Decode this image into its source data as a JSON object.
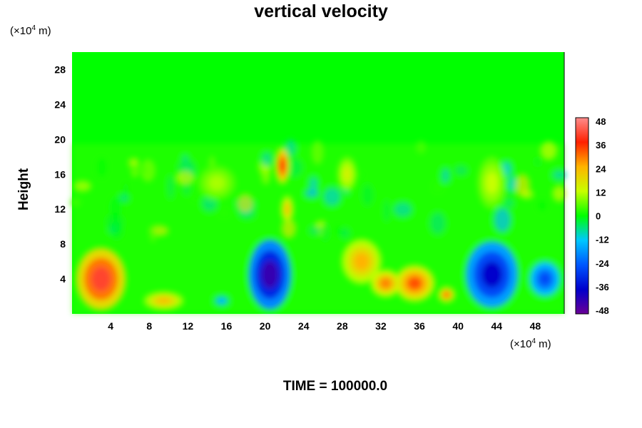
{
  "title": "vertical velocity",
  "time_label": "TIME = 100000.0",
  "y_unit": {
    "prefix": "(×10",
    "exp": "4",
    "suffix": " m)"
  },
  "x_unit": {
    "prefix": "(×10",
    "exp": "4",
    "suffix": " m)"
  },
  "chart_data": {
    "type": "heatmap",
    "title": "vertical velocity",
    "ylabel": "Height",
    "xlabel": "",
    "xlim": [
      0,
      51
    ],
    "ylim": [
      0,
      30
    ],
    "xticks": [
      4,
      8,
      12,
      16,
      20,
      24,
      28,
      32,
      36,
      40,
      44,
      48
    ],
    "yticks": [
      4,
      8,
      12,
      16,
      20,
      24,
      28
    ],
    "colorbar": {
      "range": [
        -48,
        48
      ],
      "ticks": [
        48,
        36,
        24,
        12,
        0,
        -12,
        -24,
        -36,
        -48
      ],
      "colors": [
        "#6a0096",
        "#0000cc",
        "#0057ff",
        "#00c8ff",
        "#00ff00",
        "#c8ff00",
        "#ffb400",
        "#ff2000",
        "#ff8c8c"
      ]
    },
    "field_features": [
      {
        "x": 3,
        "y": 4,
        "value": 40,
        "rx": 2.5,
        "ry": 3.5
      },
      {
        "x": 9.5,
        "y": 1.5,
        "value": 22,
        "rx": 2,
        "ry": 1
      },
      {
        "x": 20.5,
        "y": 4.5,
        "value": -42,
        "rx": 2.2,
        "ry": 4
      },
      {
        "x": 21.8,
        "y": 17,
        "value": 36,
        "rx": 0.7,
        "ry": 2
      },
      {
        "x": 22.3,
        "y": 12,
        "value": 22,
        "rx": 0.6,
        "ry": 1.5
      },
      {
        "x": 30,
        "y": 6,
        "value": 24,
        "rx": 2,
        "ry": 2.5
      },
      {
        "x": 32.5,
        "y": 3.5,
        "value": 28,
        "rx": 1.5,
        "ry": 1.5
      },
      {
        "x": 35.5,
        "y": 3.5,
        "value": 32,
        "rx": 2,
        "ry": 2
      },
      {
        "x": 38.8,
        "y": 2.2,
        "value": 30,
        "rx": 0.8,
        "ry": 0.8
      },
      {
        "x": 43.5,
        "y": 4.5,
        "value": -36,
        "rx": 2.7,
        "ry": 3.8
      },
      {
        "x": 49,
        "y": 4,
        "value": -26,
        "rx": 1.6,
        "ry": 2
      },
      {
        "x": 15.5,
        "y": 1.5,
        "value": -15,
        "rx": 0.8,
        "ry": 0.6
      },
      {
        "x": 28.5,
        "y": 16,
        "value": 14,
        "rx": 1,
        "ry": 2
      },
      {
        "x": 43.5,
        "y": 15,
        "value": 12,
        "rx": 1.5,
        "ry": 3
      },
      {
        "x": 15,
        "y": 15,
        "value": 10,
        "rx": 2,
        "ry": 2
      }
    ]
  }
}
